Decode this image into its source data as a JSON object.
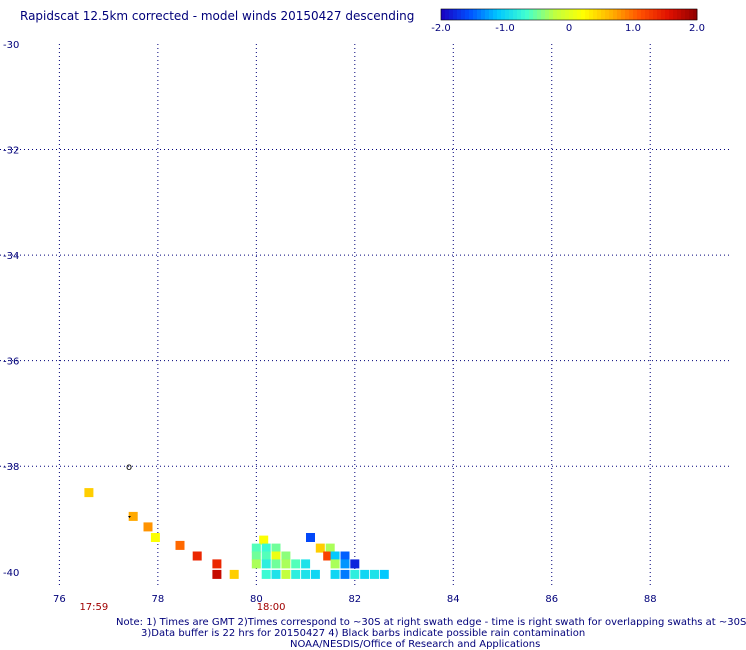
{
  "title": "Rapidscat 12.5km corrected - model winds 20150427 descending",
  "colorbar": {
    "ticks": [
      "-2.0",
      "-1.0",
      "0",
      "1.0",
      "2.0"
    ],
    "tick_values": [
      -2.0,
      -1.0,
      0,
      1.0,
      2.0
    ],
    "range": [
      -2.0,
      2.0
    ],
    "colors": [
      "#1a00c0",
      "#0050ff",
      "#00c8ff",
      "#40ffd0",
      "#c0ff40",
      "#ffff00",
      "#ffb000",
      "#ff5000",
      "#e01000",
      "#900000"
    ]
  },
  "map": {
    "lon_range": [
      75.2,
      89.6
    ],
    "lat_range": [
      -40.25,
      -30.0
    ],
    "lon_ticks": [
      76,
      78,
      80,
      82,
      84,
      86,
      88
    ],
    "lon_tick_labels": [
      "76",
      "78",
      "80",
      "82",
      "84",
      "86",
      "88"
    ],
    "lat_ticks": [
      -30,
      -32,
      -34,
      -36,
      -38,
      -40
    ],
    "lat_tick_labels": [
      "-30",
      "-32",
      "-34",
      "-36",
      "-38",
      "-40"
    ],
    "grid": true,
    "time_labels": [
      {
        "text": "17:59",
        "lon": 76.7
      },
      {
        "text": "18:00",
        "lon": 80.3
      }
    ],
    "cells": [
      {
        "lon": 76.6,
        "lat": -38.5,
        "v": 0.5
      },
      {
        "lon": 77.5,
        "lat": -38.95,
        "v": 0.7
      },
      {
        "lon": 77.8,
        "lat": -39.15,
        "v": 0.8
      },
      {
        "lon": 77.95,
        "lat": -39.35,
        "v": 0.2
      },
      {
        "lon": 78.45,
        "lat": -39.5,
        "v": 1.0
      },
      {
        "lon": 78.8,
        "lat": -39.7,
        "v": 1.4
      },
      {
        "lon": 79.2,
        "lat": -39.85,
        "v": 1.4
      },
      {
        "lon": 79.2,
        "lat": -40.05,
        "v": 1.7
      },
      {
        "lon": 79.55,
        "lat": -40.05,
        "v": 0.5
      },
      {
        "lon": 80.15,
        "lat": -39.4,
        "v": 0.2
      },
      {
        "lon": 80.0,
        "lat": -39.55,
        "v": -0.6
      },
      {
        "lon": 80.2,
        "lat": -39.55,
        "v": -0.7
      },
      {
        "lon": 80.4,
        "lat": -39.55,
        "v": -0.5
      },
      {
        "lon": 80.0,
        "lat": -39.7,
        "v": -0.5
      },
      {
        "lon": 80.2,
        "lat": -39.7,
        "v": -0.6
      },
      {
        "lon": 80.4,
        "lat": -39.7,
        "v": 0.1
      },
      {
        "lon": 80.6,
        "lat": -39.7,
        "v": -0.4
      },
      {
        "lon": 80.0,
        "lat": -39.85,
        "v": -0.3
      },
      {
        "lon": 80.2,
        "lat": -39.85,
        "v": -0.8
      },
      {
        "lon": 80.4,
        "lat": -39.85,
        "v": -0.5
      },
      {
        "lon": 80.6,
        "lat": -39.85,
        "v": -0.3
      },
      {
        "lon": 80.8,
        "lat": -39.85,
        "v": -0.6
      },
      {
        "lon": 81.0,
        "lat": -39.85,
        "v": -0.9
      },
      {
        "lon": 80.2,
        "lat": -40.05,
        "v": -0.7
      },
      {
        "lon": 80.4,
        "lat": -40.05,
        "v": -0.9
      },
      {
        "lon": 80.6,
        "lat": -40.05,
        "v": -0.2
      },
      {
        "lon": 80.8,
        "lat": -40.05,
        "v": -0.8
      },
      {
        "lon": 81.0,
        "lat": -40.05,
        "v": -0.9
      },
      {
        "lon": 81.2,
        "lat": -40.05,
        "v": -1.0
      },
      {
        "lon": 81.1,
        "lat": -39.35,
        "v": -1.6
      },
      {
        "lon": 81.3,
        "lat": -39.55,
        "v": 0.5
      },
      {
        "lon": 81.5,
        "lat": -39.55,
        "v": -0.3
      },
      {
        "lon": 81.45,
        "lat": -39.7,
        "v": 1.2
      },
      {
        "lon": 81.6,
        "lat": -39.7,
        "v": -1.1
      },
      {
        "lon": 81.8,
        "lat": -39.7,
        "v": -1.5
      },
      {
        "lon": 81.6,
        "lat": -39.85,
        "v": -0.3
      },
      {
        "lon": 81.8,
        "lat": -39.85,
        "v": -1.3
      },
      {
        "lon": 82.0,
        "lat": -39.85,
        "v": -1.8
      },
      {
        "lon": 81.6,
        "lat": -40.05,
        "v": -1.0
      },
      {
        "lon": 81.8,
        "lat": -40.05,
        "v": -1.4
      },
      {
        "lon": 82.0,
        "lat": -40.05,
        "v": -0.8
      },
      {
        "lon": 82.2,
        "lat": -40.05,
        "v": -1.0
      },
      {
        "lon": 82.4,
        "lat": -40.05,
        "v": -0.9
      },
      {
        "lon": 82.6,
        "lat": -40.05,
        "v": -1.1
      }
    ]
  },
  "notes": [
    "Note: 1) Times are GMT 2)Times correspond to ~30S at right swath edge - time is right swath for overlapping swaths at ~30S",
    "3)Data buffer is 22 hrs for 20150427 4) Black barbs indicate possible rain contamination",
    "NOAA/NESDIS/Office of Research and Applications"
  ]
}
